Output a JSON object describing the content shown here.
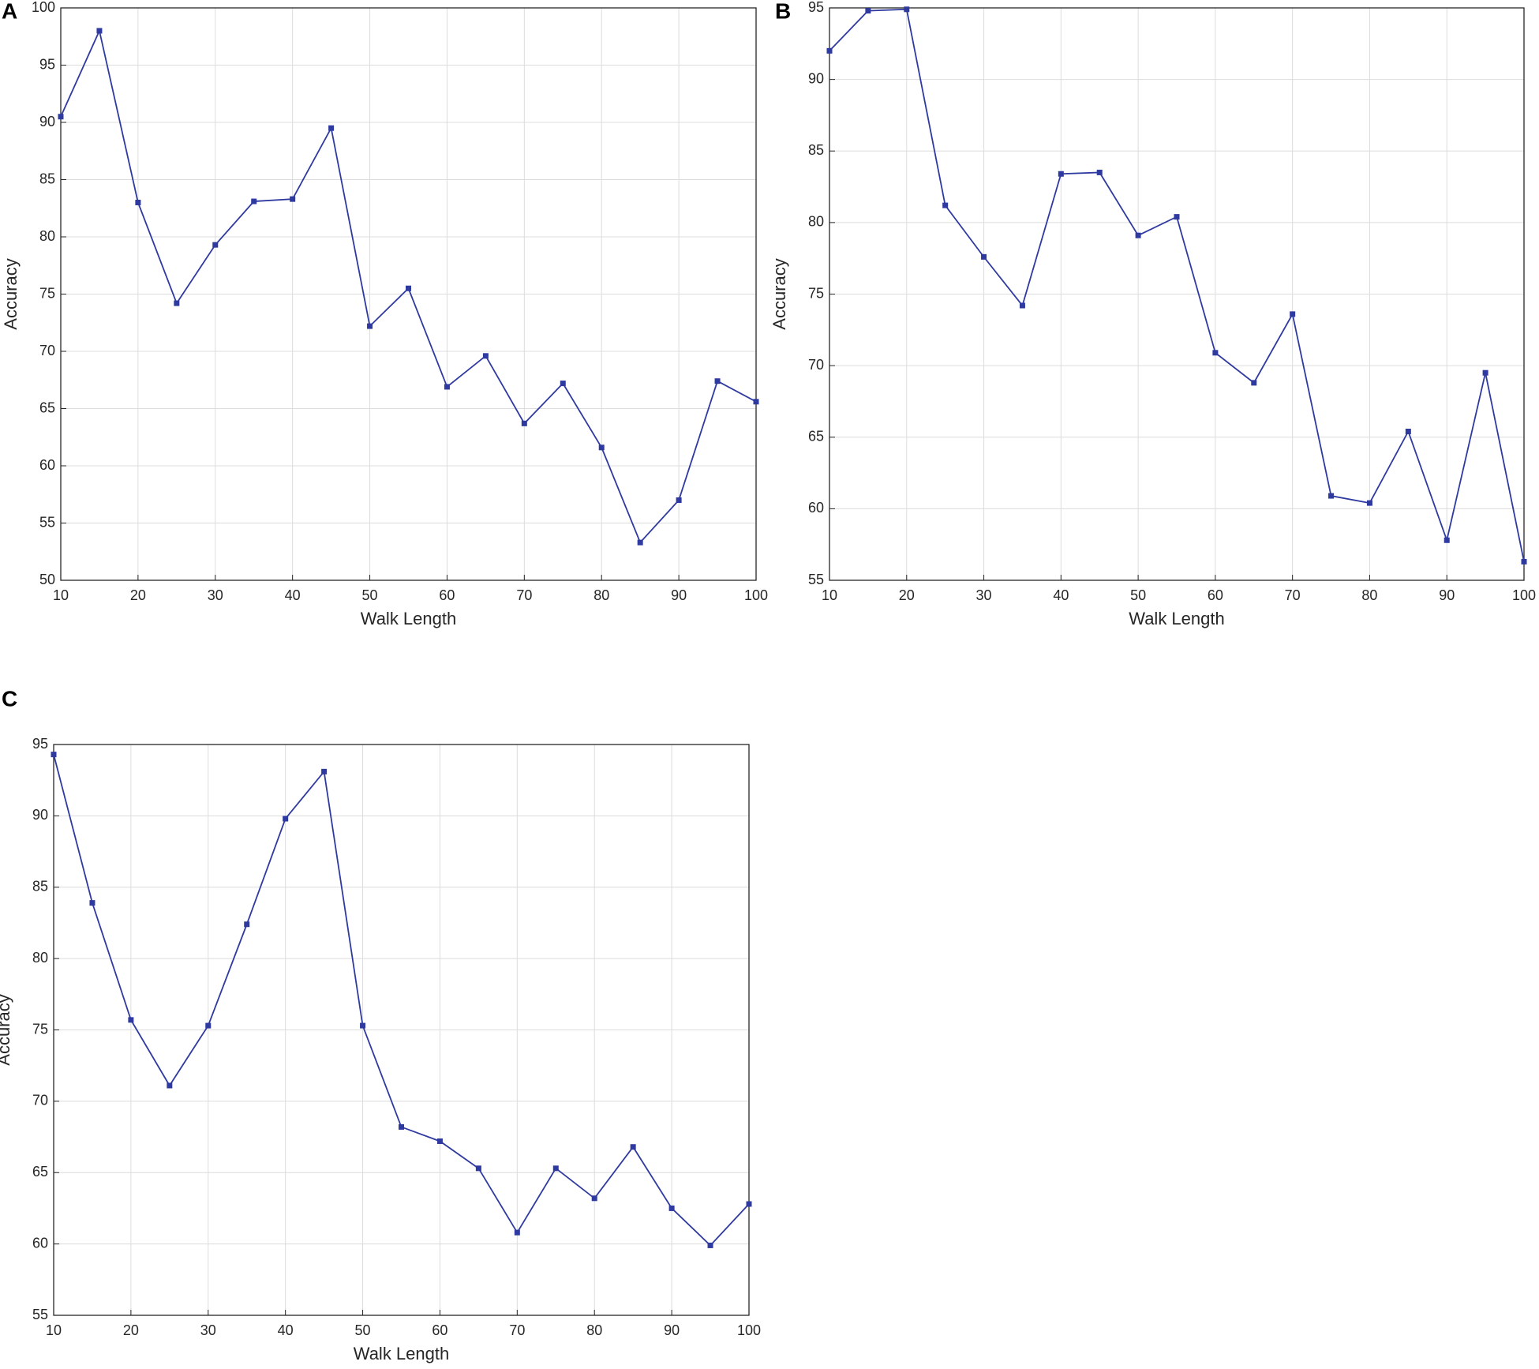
{
  "chart_data": [
    {
      "type": "line",
      "panel_label": "A",
      "xlabel": "Walk Length",
      "ylabel": "Accuracy",
      "x": [
        10,
        15,
        20,
        25,
        30,
        35,
        40,
        45,
        50,
        55,
        60,
        65,
        70,
        75,
        80,
        85,
        90,
        95,
        100
      ],
      "series": [
        {
          "color": "#2f3aa0",
          "values": [
            90.5,
            98,
            83,
            74.2,
            79.3,
            83.1,
            83.3,
            89.5,
            72.2,
            75.5,
            66.9,
            69.6,
            63.7,
            67.2,
            61.6,
            53.3,
            57,
            67.4,
            65.6
          ]
        }
      ],
      "xlim": [
        10,
        100
      ],
      "ylim": [
        50,
        100
      ],
      "xticks": [
        10,
        20,
        30,
        40,
        50,
        60,
        70,
        80,
        90,
        100
      ],
      "yticks": [
        50,
        55,
        60,
        65,
        70,
        75,
        80,
        85,
        90,
        95,
        100
      ],
      "grid": true
    },
    {
      "type": "line",
      "panel_label": "B",
      "xlabel": "Walk Length",
      "ylabel": "Accuracy",
      "x": [
        10,
        15,
        20,
        25,
        30,
        35,
        40,
        45,
        50,
        55,
        60,
        65,
        70,
        75,
        80,
        85,
        90,
        95,
        100
      ],
      "series": [
        {
          "color": "#2f3aa0",
          "values": [
            92,
            94.8,
            94.9,
            81.2,
            77.6,
            74.2,
            83.4,
            83.5,
            79.1,
            80.4,
            70.9,
            68.8,
            73.6,
            60.9,
            60.4,
            65.4,
            57.8,
            69.5,
            56.3
          ]
        }
      ],
      "xlim": [
        10,
        100
      ],
      "ylim": [
        55,
        95
      ],
      "xticks": [
        10,
        20,
        30,
        40,
        50,
        60,
        70,
        80,
        90,
        100
      ],
      "yticks": [
        55,
        60,
        65,
        70,
        75,
        80,
        85,
        90,
        95
      ],
      "grid": true
    },
    {
      "type": "line",
      "panel_label": "C",
      "xlabel": "Walk Length",
      "ylabel": "Accuracy",
      "x": [
        10,
        15,
        20,
        25,
        30,
        35,
        40,
        45,
        50,
        55,
        60,
        65,
        70,
        75,
        80,
        85,
        90,
        95,
        100
      ],
      "series": [
        {
          "color": "#2f3aa0",
          "values": [
            94.3,
            83.9,
            75.7,
            71.1,
            75.3,
            82.4,
            89.8,
            93.1,
            75.3,
            68.2,
            67.2,
            65.3,
            60.8,
            65.3,
            63.2,
            66.8,
            62.5,
            59.9,
            62.8
          ]
        }
      ],
      "xlim": [
        10,
        100
      ],
      "ylim": [
        55,
        95
      ],
      "xticks": [
        10,
        20,
        30,
        40,
        50,
        60,
        70,
        80,
        90,
        100
      ],
      "yticks": [
        55,
        60,
        65,
        70,
        75,
        80,
        85,
        90,
        95
      ],
      "grid": true
    }
  ]
}
